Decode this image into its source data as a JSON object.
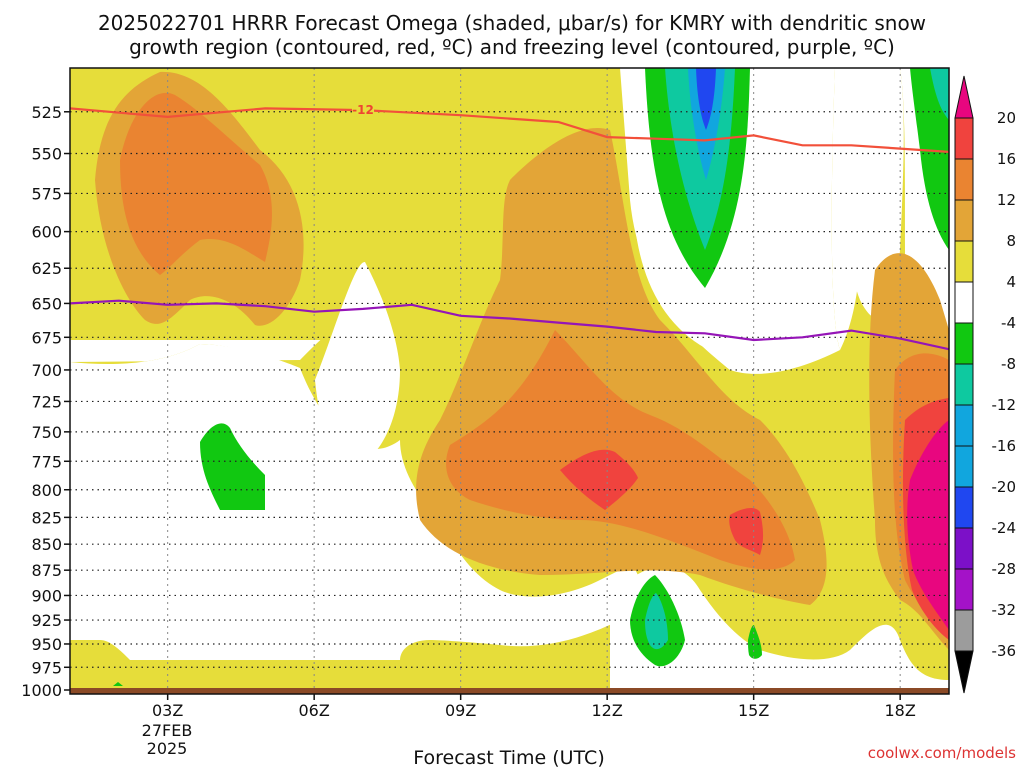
{
  "title": {
    "line1": "2025022701 HRRR Forecast Omega (shaded, μbar/s) for KMRY with dendritic snow",
    "line2": "growth region (contoured, red, ºC) and freezing level (contoured, purple, ºC)"
  },
  "credit": "coolwx.com/models",
  "xlabel_text": "Forecast Time (UTC)",
  "date_label": {
    "line1": "27FEB",
    "line2": "2025"
  },
  "colors": {
    "yellow": "#e6dd3a",
    "light_orange": "#e3a537",
    "orange": "#ea8431",
    "red": "#f0433e",
    "magenta": "#e8067f",
    "green": "#11c811",
    "teal": "#0ec9a0",
    "cyan": "#11a6de",
    "blue": "#2047f0",
    "dgs_line": "#f2503a",
    "freezing_line": "#9515b7",
    "ground": "#8b4a26"
  },
  "chart_data": {
    "type": "heatmap",
    "title": "2025022701 HRRR Forecast Omega (shaded, μbar/s) for KMRY with dendritic snow growth region (contoured, red, ºC) and freezing level (contoured, purple, ºC)",
    "xlabel": "Forecast Time (UTC)",
    "ylabel": "",
    "x_ticks": [
      "03Z",
      "06Z",
      "09Z",
      "12Z",
      "15Z",
      "18Z"
    ],
    "x_tick_hours": [
      3,
      6,
      9,
      12,
      15,
      18
    ],
    "xlim_hours": [
      1.0,
      19.0
    ],
    "y_ticks": [
      525,
      550,
      575,
      600,
      625,
      650,
      675,
      700,
      725,
      750,
      775,
      800,
      825,
      850,
      875,
      900,
      925,
      950,
      975,
      1000
    ],
    "ylim_hpa": [
      500,
      1000
    ],
    "y_scale": "log-pressure",
    "colorbar": {
      "levels": [
        20,
        16,
        12,
        8,
        4,
        -4,
        -8,
        -12,
        -16,
        -20,
        -24,
        -28,
        -32,
        -36
      ],
      "colors": [
        "#e8067f",
        "#f0433e",
        "#ea8431",
        "#e3a537",
        "#e6dd3a",
        "#ffffff",
        "#11c811",
        "#0ec9a0",
        "#11a6de",
        "#11a6de",
        "#2047f0",
        "#7c10c8",
        "#a412c8",
        "#9c9c9c",
        "#000000"
      ]
    },
    "series": [
      {
        "name": "-12",
        "color": "#f2503a",
        "points": [
          [
            1.0,
            523
          ],
          [
            3.0,
            528
          ],
          [
            5.0,
            523
          ],
          [
            7.0,
            524
          ],
          [
            9.0,
            527
          ],
          [
            11.0,
            531
          ],
          [
            12.0,
            540
          ],
          [
            13.0,
            541
          ],
          [
            14.0,
            542
          ],
          [
            15.0,
            539
          ],
          [
            16.0,
            545
          ],
          [
            17.0,
            545
          ],
          [
            18.0,
            547
          ],
          [
            19.0,
            549
          ]
        ]
      },
      {
        "color": "#9515b7",
        "points": [
          [
            1.0,
            650
          ],
          [
            2.0,
            648
          ],
          [
            3.0,
            651
          ],
          [
            4.0,
            650
          ],
          [
            5.0,
            652
          ],
          [
            6.0,
            656
          ],
          [
            7.0,
            654
          ],
          [
            8.0,
            651
          ],
          [
            9.0,
            659
          ],
          [
            10.0,
            661
          ],
          [
            11.0,
            664
          ],
          [
            12.0,
            667
          ],
          [
            13.0,
            671
          ],
          [
            14.0,
            672
          ],
          [
            15.0,
            677
          ],
          [
            16.0,
            675
          ],
          [
            17.0,
            670
          ],
          [
            18.0,
            676
          ],
          [
            19.0,
            684
          ]
        ]
      }
    ],
    "surface_pressure_hpa": 1000
  }
}
